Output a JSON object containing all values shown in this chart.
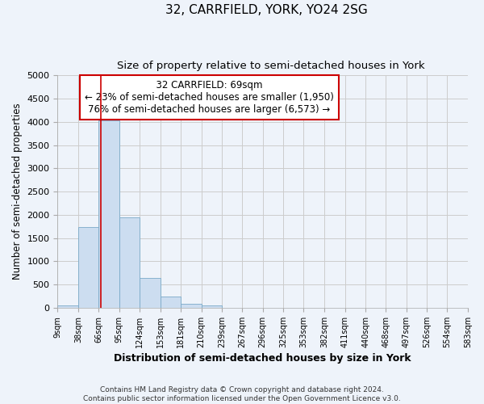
{
  "title": "32, CARRFIELD, YORK, YO24 2SG",
  "subtitle": "Size of property relative to semi-detached houses in York",
  "xlabel": "Distribution of semi-detached houses by size in York",
  "ylabel": "Number of semi-detached properties",
  "bin_edges": [
    9,
    38,
    66,
    95,
    124,
    153,
    181,
    210,
    239,
    267,
    296,
    325,
    353,
    382,
    411,
    440,
    468,
    497,
    526,
    554,
    583
  ],
  "bar_heights": [
    50,
    1730,
    4040,
    1950,
    650,
    240,
    80,
    55,
    0,
    0,
    0,
    0,
    0,
    0,
    0,
    0,
    0,
    0,
    0,
    0
  ],
  "bar_color": "#ccddf0",
  "bar_edge_color": "#7aaac8",
  "property_size": 69,
  "property_line_color": "#cc0000",
  "ylim": [
    0,
    5000
  ],
  "yticks": [
    0,
    500,
    1000,
    1500,
    2000,
    2500,
    3000,
    3500,
    4000,
    4500,
    5000
  ],
  "annotation_title": "32 CARRFIELD: 69sqm",
  "annotation_line1": "← 23% of semi-detached houses are smaller (1,950)",
  "annotation_line2": "76% of semi-detached houses are larger (6,573) →",
  "annotation_box_color": "#ffffff",
  "annotation_box_edge_color": "#cc0000",
  "footer_line1": "Contains HM Land Registry data © Crown copyright and database right 2024.",
  "footer_line2": "Contains public sector information licensed under the Open Government Licence v3.0.",
  "background_color": "#eef3fa",
  "grid_color": "#cccccc"
}
